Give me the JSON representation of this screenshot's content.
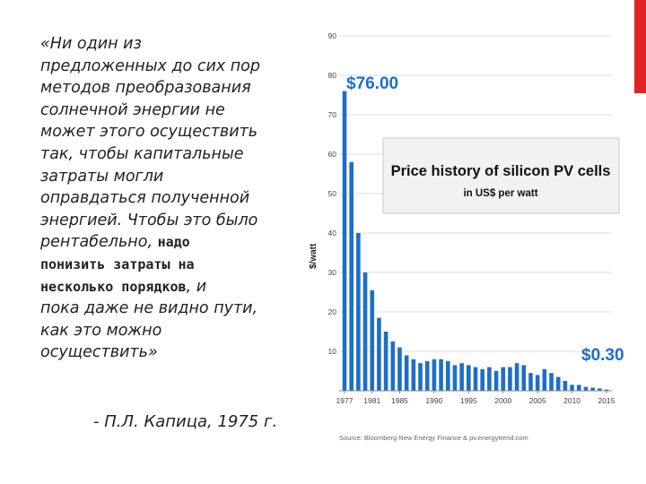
{
  "accent_color": "#e02424",
  "quote": {
    "lines": [
      {
        "text": "«Ни один из"
      },
      {
        "text": "предложенных до сих пор"
      },
      {
        "text": "методов преобразования"
      },
      {
        "text": "солнечной энергии не"
      },
      {
        "text": "может этого осуществить"
      },
      {
        "text": "так, чтобы капитальные"
      },
      {
        "text": "затраты могли"
      },
      {
        "text": "оправдаться полученной"
      },
      {
        "text": "энергией. Чтобы это было"
      },
      {
        "text": "рентабельно, ",
        "bold": "надо"
      },
      {
        "bold": "понизить затраты на"
      },
      {
        "bold": "несколько порядков",
        "text": ", и"
      },
      {
        "text": "пока даже не видно пути,"
      },
      {
        "text": "как это можно"
      },
      {
        "text": "осуществить»"
      }
    ],
    "author": "- П.Л. Капица, 1975 г."
  },
  "chart_data": {
    "type": "bar",
    "title": "Price history of silicon PV cells",
    "subtitle": "in US$ per watt",
    "ylabel": "$/watt",
    "xlabel": "",
    "ylim": [
      0,
      90
    ],
    "yticks": [
      10,
      20,
      30,
      40,
      50,
      60,
      70,
      80,
      90
    ],
    "xticks": [
      "1977",
      "1981",
      "1985",
      "1990",
      "1995",
      "2000",
      "2005",
      "2010",
      "2015"
    ],
    "grid": "horizontal",
    "bar_color": "#1f6ec6",
    "categories": [
      1977,
      1978,
      1979,
      1980,
      1981,
      1982,
      1983,
      1984,
      1985,
      1986,
      1987,
      1988,
      1989,
      1990,
      1991,
      1992,
      1993,
      1994,
      1995,
      1996,
      1997,
      1998,
      1999,
      2000,
      2001,
      2002,
      2003,
      2004,
      2005,
      2006,
      2007,
      2008,
      2009,
      2010,
      2011,
      2012,
      2013,
      2014,
      2015
    ],
    "values": [
      76.0,
      58.0,
      40.0,
      30.0,
      25.5,
      18.5,
      15.0,
      12.5,
      11.0,
      9.0,
      8.0,
      7.0,
      7.5,
      8.0,
      8.0,
      7.5,
      6.5,
      7.0,
      6.5,
      6.0,
      5.5,
      6.0,
      5.0,
      6.0,
      6.0,
      7.0,
      6.5,
      4.5,
      4.0,
      5.5,
      4.5,
      3.5,
      2.5,
      1.5,
      1.5,
      1.0,
      0.8,
      0.6,
      0.3
    ],
    "annotations": [
      {
        "label": "$76.00",
        "year": 1977
      },
      {
        "label": "$0.30",
        "year": 2015
      }
    ],
    "source": "Source: Bloomberg New Energy Finance & pv.energytrend.com"
  }
}
